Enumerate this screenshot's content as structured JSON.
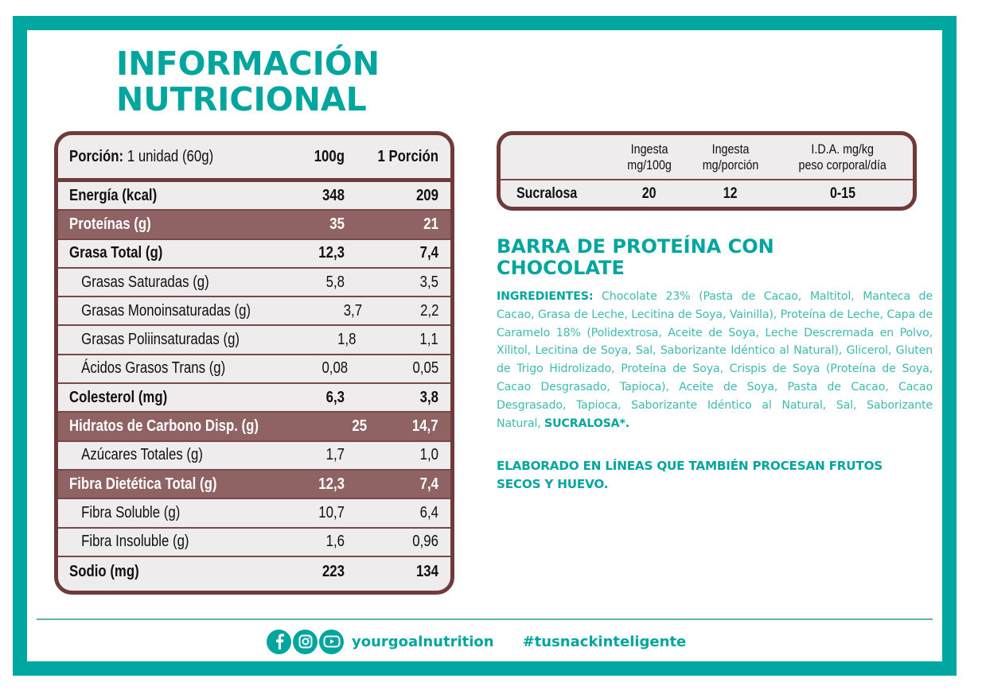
{
  "header": {
    "title_line1": "INFORMACIÓN",
    "title_line2": "NUTRICIONAL"
  },
  "nutrition_table": {
    "serving_label": "Porción:",
    "serving_value": "1 unidad (60g)",
    "col_100g": "100g",
    "col_portion": "1 Porción",
    "rows": [
      {
        "label": "Energía (kcal)",
        "per100": "348",
        "perPortion": "209",
        "style": "bold"
      },
      {
        "label": "Proteínas (g)",
        "per100": "35",
        "perPortion": "21",
        "style": "highlight"
      },
      {
        "label": "Grasa Total (g)",
        "per100": "12,3",
        "perPortion": "7,4",
        "style": "bold"
      },
      {
        "label": "Grasas Saturadas (g)",
        "per100": "5,8",
        "perPortion": "3,5",
        "style": "sub"
      },
      {
        "label": "Grasas Monoinsaturadas (g)",
        "per100": "3,7",
        "perPortion": "2,2",
        "style": "sub"
      },
      {
        "label": "Grasas Poliinsaturadas (g)",
        "per100": "1,8",
        "perPortion": "1,1",
        "style": "sub"
      },
      {
        "label": "Ácidos Grasos Trans (g)",
        "per100": "0,08",
        "perPortion": "0,05",
        "style": "sub"
      },
      {
        "label": "Colesterol (mg)",
        "per100": "6,3",
        "perPortion": "3,8",
        "style": "bold"
      },
      {
        "label": "Hidratos de Carbono Disp. (g)",
        "per100": "25",
        "perPortion": "14,7",
        "style": "highlight"
      },
      {
        "label": "Azúcares Totales (g)",
        "per100": "1,7",
        "perPortion": "1,0",
        "style": "sub"
      },
      {
        "label": "Fibra Dietética Total (g)",
        "per100": "12,3",
        "perPortion": "7,4",
        "style": "highlight"
      },
      {
        "label": "Fibra Soluble (g)",
        "per100": "10,7",
        "perPortion": "6,4",
        "style": "sub"
      },
      {
        "label": "Fibra Insoluble (g)",
        "per100": "1,6",
        "perPortion": "0,96",
        "style": "sub"
      },
      {
        "label": "Sodio (mg)",
        "per100": "223",
        "perPortion": "134",
        "style": "bold"
      }
    ]
  },
  "sweetener_table": {
    "headers": [
      "",
      "Ingesta mg/100g",
      "Ingesta mg/porción",
      "I.D.A. mg/kg peso corporal/día"
    ],
    "header_lines": [
      [
        "",
        ""
      ],
      [
        "Ingesta",
        "mg/100g"
      ],
      [
        "Ingesta",
        "mg/porción"
      ],
      [
        "I.D.A. mg/kg",
        "peso corporal/día"
      ]
    ],
    "row": {
      "name": "Sucralosa",
      "per100": "20",
      "perPortion": "12",
      "ida": "0-15"
    }
  },
  "product": {
    "title_line1": "BARRA DE PROTEÍNA CON",
    "title_line2": "CHOCOLATE",
    "ingredients_label": "INGREDIENTES:",
    "ingredients_text": "Chocolate 23% (Pasta de Cacao, Maltitol, Manteca de Cacao, Grasa de Leche, Lecitina de Soya, Vainilla), Proteína de Leche, Capa de Caramelo 18% (Polidextrosa, Aceite de Soya, Leche Descremada en Polvo, Xilitol, Lecitina de Soya, Sal, Saborizante Idéntico al Natural), Glicerol, Gluten de Trigo Hidrolizado, Proteína de Soya, Crispis de Soya (Proteína de Soya, Cacao Desgrasado, Tapioca), Aceite de Soya, Pasta de Cacao, Cacao Desgrasado, Tapioca, Saborizante Idéntico al Natural, Sal, Saborizante Natural,",
    "ingredients_emphasis": "SUCRALOSA*.",
    "allergen_line1": "ELABORADO EN LÍNEAS QUE TAMBIÉN PROCESAN FRUTOS",
    "allergen_line2": "SECOS Y HUEVO."
  },
  "footer": {
    "social_icons": [
      "facebook-icon",
      "instagram-icon",
      "youtube-icon"
    ],
    "handle": "yourgoalnutrition",
    "hashtag": "#tusnackinteligente"
  },
  "colors": {
    "teal": "#00a69e",
    "teal_text_light": "#3fbab2",
    "brown_border": "#6e3a3a",
    "brown_highlight": "#8f6363",
    "table_fill": "#eeecec"
  }
}
